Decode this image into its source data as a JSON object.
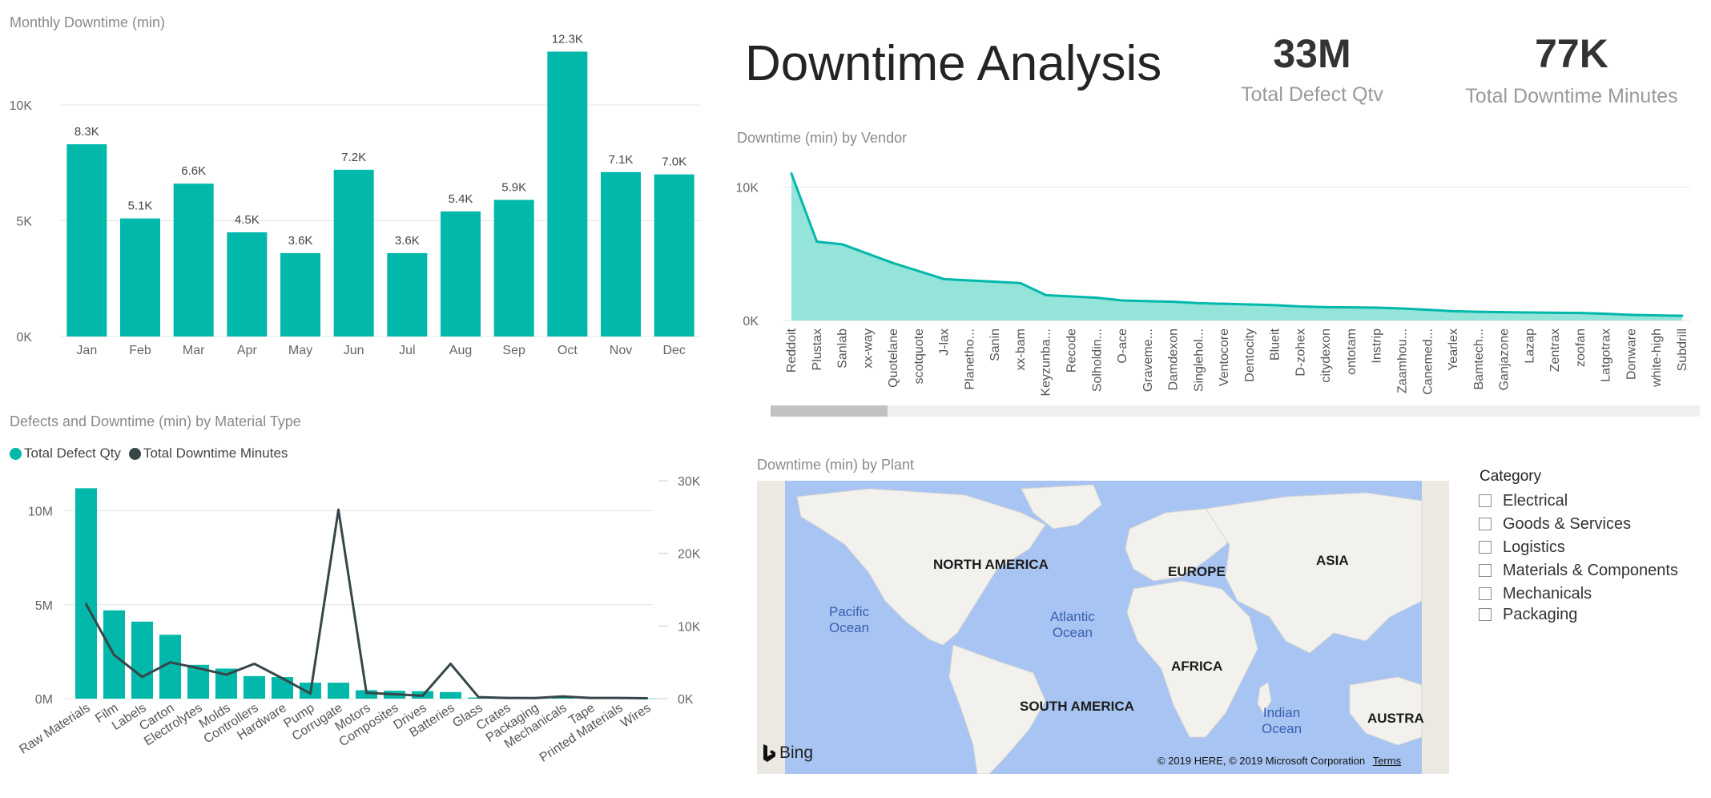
{
  "header": {
    "title": "Downtime Analysis"
  },
  "kpis": [
    {
      "value": "33M",
      "label": "Total Defect Qtv"
    },
    {
      "value": "77K",
      "label": "Total Downtime Minutes"
    }
  ],
  "monthly_chart": {
    "title": "Monthly Downtime (min)",
    "color": "#01B8AA"
  },
  "vendor_chart": {
    "title": "Downtime (min) by Vendor",
    "line_color": "#01B8AA",
    "fill_color": "#8EE3D8"
  },
  "material_chart": {
    "title": "Defects and Downtime (min) by Material Type",
    "bar_color": "#01B8AA",
    "line_color": "#374649",
    "legend": [
      "Total Defect Qty",
      "Total Downtime Minutes"
    ]
  },
  "map": {
    "title": "Downtime (min) by Plant",
    "continents": [
      "NORTH AMERICA",
      "EUROPE",
      "ASIA",
      "AFRICA",
      "SOUTH AMERICA",
      "AUSTRA"
    ],
    "oceans": [
      "Pacific\nOcean",
      "Atlantic\nOcean",
      "Indian\nOcean"
    ],
    "logo_text": "Bing",
    "copyright": "© 2019 HERE, © 2019 Microsoft Corporation",
    "terms": "Terms"
  },
  "slicer": {
    "title": "Category",
    "items": [
      "Electrical",
      "Goods & Services",
      "Logistics",
      "Materials & Components",
      "Mechanicals",
      "Packaging"
    ]
  },
  "chart_data": [
    {
      "type": "bar",
      "title": "Monthly Downtime (min)",
      "categories": [
        "Jan",
        "Feb",
        "Mar",
        "Apr",
        "May",
        "Jun",
        "Jul",
        "Aug",
        "Sep",
        "Oct",
        "Nov",
        "Dec"
      ],
      "values": [
        8300,
        5100,
        6600,
        4500,
        3600,
        7200,
        3600,
        5400,
        5900,
        12300,
        7100,
        7000
      ],
      "data_labels": [
        "8.3K",
        "5.1K",
        "6.6K",
        "4.5K",
        "3.6K",
        "7.2K",
        "3.6K",
        "5.4K",
        "5.9K",
        "12.3K",
        "7.1K",
        "7.0K"
      ],
      "y_ticks": [
        "0K",
        "5K",
        "10K"
      ],
      "ylim": [
        0,
        13000
      ],
      "grid": true
    },
    {
      "type": "area",
      "title": "Downtime (min) by Vendor",
      "categories": [
        "Reddoit",
        "Plustax",
        "Sanlab",
        "xx-way",
        "Quotelane",
        "scotquote",
        "J-lax",
        "Planetho...",
        "Sanin",
        "xx-bam",
        "Keyzunba...",
        "Recode",
        "Solholdin...",
        "O-ace",
        "Graveme...",
        "Damdexon",
        "Singlehol...",
        "Ventocore",
        "Dentocity",
        "Blueit",
        "D-zohex",
        "citydexon",
        "ontotam",
        "Instrip",
        "Zaamhou...",
        "Canemed...",
        "Yearlex",
        "Bamtech...",
        "Ganjazone",
        "Lazap",
        "Zentrax",
        "zoofan",
        "Latgotrax",
        "Donware",
        "white-high",
        "Subdrill"
      ],
      "values": [
        11000,
        5900,
        5700,
        5000,
        4300,
        3700,
        3100,
        3000,
        2900,
        2800,
        1900,
        1800,
        1700,
        1500,
        1450,
        1400,
        1300,
        1250,
        1200,
        1150,
        1050,
        1000,
        980,
        960,
        900,
        800,
        700,
        650,
        620,
        600,
        580,
        560,
        500,
        420,
        380,
        350
      ],
      "y_ticks": [
        "0K",
        "10K"
      ],
      "ylim": [
        0,
        12000
      ],
      "grid": true
    },
    {
      "type": "bar",
      "title": "Defects and Downtime (min) by Material Type",
      "categories": [
        "Raw Materials",
        "Film",
        "Labels",
        "Carton",
        "Electrolytes",
        "Molds",
        "Controllers",
        "Hardware",
        "Pump",
        "Corrugate",
        "Motors",
        "Composites",
        "Drives",
        "Batteries",
        "Glass",
        "Crates",
        "Packaging",
        "Mechanicals",
        "Tape",
        "Printed Materials",
        "Wires"
      ],
      "series": [
        {
          "name": "Total Defect Qty",
          "type": "bar",
          "axis": "left",
          "values": [
            11200000,
            4700000,
            4100000,
            3400000,
            1800000,
            1600000,
            1200000,
            1150000,
            850000,
            850000,
            450000,
            420000,
            400000,
            350000,
            60000,
            30000,
            20000,
            100000,
            20000,
            15000,
            10000
          ]
        },
        {
          "name": "Total Downtime Minutes",
          "type": "line",
          "axis": "right",
          "values": [
            13000,
            6000,
            3000,
            5000,
            4200,
            3300,
            4800,
            2800,
            700,
            26000,
            800,
            600,
            400,
            4800,
            200,
            100,
            80,
            300,
            100,
            100,
            50
          ]
        }
      ],
      "y_ticks_left": [
        "0M",
        "5M",
        "10M"
      ],
      "ylim_left": [
        0,
        12000000
      ],
      "y_ticks_right": [
        "0K",
        "10K",
        "20K",
        "30K"
      ],
      "ylim_right": [
        0,
        30000
      ],
      "legend_position": "top-left",
      "grid": true
    }
  ]
}
